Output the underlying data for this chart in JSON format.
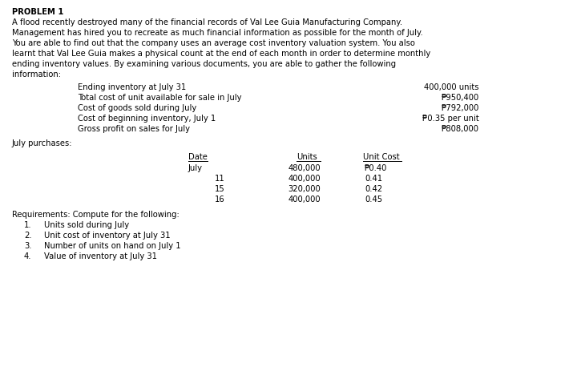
{
  "title": "PROBLEM 1",
  "para_lines": [
    "A flood recently destroyed many of the financial records of Val Lee Guia Manufacturing Company.",
    "Management has hired you to recreate as much financial information as possible for the month of July.",
    "You are able to find out that the company uses an average cost inventory valuation system. You also",
    "learnt that Val Lee Guia makes a physical count at the end of each month in order to determine monthly",
    "ending inventory values. By examining various documents, you are able to gather the following",
    "information:"
  ],
  "info_labels": [
    "Ending inventory at July 31",
    "Total cost of unit available for sale in July",
    "Cost of goods sold during July",
    "Cost of beginning inventory, July 1",
    "Gross profit on sales for July"
  ],
  "info_values": [
    "400,000 units",
    "₱950,400",
    "₱792,000",
    "₱0.35 per unit",
    "₱808,000"
  ],
  "july_purchases_label": "July purchases:",
  "table_date_main": [
    "July",
    "",
    "",
    ""
  ],
  "table_date_num": [
    "",
    "11",
    "15",
    "16"
  ],
  "table_units": [
    "480,000",
    "400,000",
    "320,000",
    "400,000"
  ],
  "table_ucost": [
    "₱0.40",
    "0.41",
    "0.42",
    "0.45"
  ],
  "requirements_header": "Requirements: Compute for the following:",
  "requirements": [
    "Units sold during July",
    "Unit cost of inventory at July 31",
    "Number of units on hand on July 1",
    "Value of inventory at July 31"
  ],
  "bg_color": "#ffffff",
  "text_color": "#000000"
}
